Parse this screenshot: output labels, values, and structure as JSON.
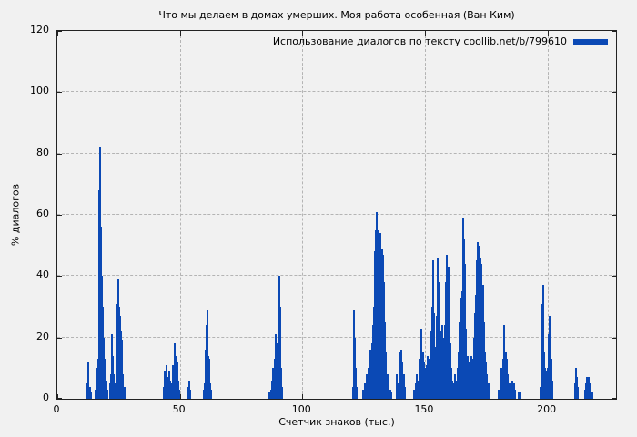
{
  "colors": {
    "bar_blue": "#0b49b5",
    "background": "#f1f1f1",
    "grid": "#b4b4b4",
    "frame": "#222222",
    "text": "#000000"
  },
  "chart_data": {
    "type": "bar",
    "title": "Что мы делаем в домах умерших. Моя работа особенная (Ван Ким)",
    "xlabel": "Счетчик знаков (тыс.)",
    "ylabel": "% диалогов",
    "xlim": [
      0,
      228
    ],
    "ylim": [
      0,
      120
    ],
    "x_ticks": [
      0,
      50,
      100,
      150,
      200
    ],
    "y_ticks": [
      0,
      20,
      40,
      60,
      80,
      100,
      120
    ],
    "grid": true,
    "legend_position": "top-right",
    "bar_style": "impulses",
    "series": [
      {
        "name": "Использование диалогов по тексту coollib.net/b/799610",
        "points": [
          [
            11.9,
            2
          ],
          [
            12.2,
            5
          ],
          [
            12.5,
            12
          ],
          [
            12.8,
            8
          ],
          [
            13.2,
            4
          ],
          [
            13.6,
            2
          ],
          [
            15.7,
            3
          ],
          [
            16.0,
            6
          ],
          [
            16.3,
            10
          ],
          [
            16.6,
            13
          ],
          [
            16.9,
            21
          ],
          [
            17.1,
            40
          ],
          [
            17.25,
            68
          ],
          [
            17.4,
            82
          ],
          [
            17.6,
            73
          ],
          [
            17.8,
            56
          ],
          [
            18.0,
            47
          ],
          [
            18.3,
            40
          ],
          [
            18.6,
            30
          ],
          [
            18.9,
            20
          ],
          [
            19.2,
            13
          ],
          [
            19.6,
            8
          ],
          [
            20.0,
            6
          ],
          [
            20.4,
            3
          ],
          [
            21.4,
            5
          ],
          [
            21.8,
            8
          ],
          [
            22.1,
            19
          ],
          [
            22.3,
            21
          ],
          [
            22.6,
            14
          ],
          [
            22.9,
            8
          ],
          [
            23.3,
            5
          ],
          [
            24.0,
            6
          ],
          [
            24.3,
            15
          ],
          [
            24.6,
            31
          ],
          [
            24.9,
            39
          ],
          [
            25.2,
            30
          ],
          [
            25.5,
            27
          ],
          [
            25.9,
            22
          ],
          [
            26.2,
            19
          ],
          [
            26.5,
            13
          ],
          [
            26.9,
            8
          ],
          [
            27.3,
            4
          ],
          [
            43.6,
            4
          ],
          [
            43.9,
            9
          ],
          [
            44.4,
            11
          ],
          [
            44.8,
            7
          ],
          [
            45.2,
            5
          ],
          [
            45.7,
            9
          ],
          [
            46.1,
            6
          ],
          [
            46.6,
            5
          ],
          [
            47.0,
            11
          ],
          [
            47.5,
            8
          ],
          [
            48.0,
            18
          ],
          [
            48.5,
            14
          ],
          [
            49.0,
            12
          ],
          [
            49.4,
            6
          ],
          [
            49.8,
            3
          ],
          [
            53.2,
            4
          ],
          [
            53.7,
            6
          ],
          [
            54.2,
            3
          ],
          [
            59.7,
            3
          ],
          [
            60.1,
            5
          ],
          [
            60.5,
            16
          ],
          [
            60.9,
            24
          ],
          [
            61.2,
            29
          ],
          [
            61.6,
            14
          ],
          [
            62.0,
            13
          ],
          [
            62.4,
            5
          ],
          [
            62.8,
            3
          ],
          [
            86.5,
            2
          ],
          [
            87.1,
            3
          ],
          [
            87.6,
            6
          ],
          [
            88.1,
            10
          ],
          [
            88.6,
            13
          ],
          [
            89.0,
            21
          ],
          [
            89.4,
            17
          ],
          [
            89.8,
            18
          ],
          [
            90.2,
            22
          ],
          [
            90.5,
            40
          ],
          [
            90.9,
            30
          ],
          [
            91.3,
            10
          ],
          [
            91.7,
            4
          ],
          [
            120.6,
            4
          ],
          [
            120.9,
            12
          ],
          [
            121.2,
            29
          ],
          [
            121.5,
            20
          ],
          [
            121.8,
            10
          ],
          [
            122.1,
            4
          ],
          [
            124.9,
            3
          ],
          [
            125.4,
            5
          ],
          [
            125.9,
            3
          ],
          [
            126.4,
            8
          ],
          [
            126.9,
            10
          ],
          [
            127.4,
            9
          ],
          [
            127.9,
            16
          ],
          [
            128.4,
            18
          ],
          [
            128.8,
            24
          ],
          [
            129.2,
            30
          ],
          [
            129.6,
            48
          ],
          [
            130.0,
            55
          ],
          [
            130.4,
            61
          ],
          [
            130.8,
            55
          ],
          [
            131.2,
            48
          ],
          [
            131.6,
            13
          ],
          [
            132.0,
            54
          ],
          [
            132.4,
            49
          ],
          [
            132.8,
            47
          ],
          [
            133.2,
            38
          ],
          [
            133.7,
            25
          ],
          [
            134.2,
            15
          ],
          [
            134.7,
            8
          ],
          [
            135.2,
            5
          ],
          [
            135.8,
            3
          ],
          [
            136.4,
            2
          ],
          [
            138.6,
            8
          ],
          [
            139.0,
            5
          ],
          [
            139.9,
            15
          ],
          [
            140.3,
            16
          ],
          [
            140.8,
            12
          ],
          [
            141.3,
            8
          ],
          [
            141.8,
            4
          ],
          [
            145.7,
            3
          ],
          [
            146.2,
            5
          ],
          [
            146.7,
            8
          ],
          [
            147.2,
            6
          ],
          [
            147.7,
            13
          ],
          [
            148.2,
            18
          ],
          [
            148.7,
            23
          ],
          [
            149.2,
            15
          ],
          [
            149.7,
            12
          ],
          [
            150.2,
            10
          ],
          [
            150.7,
            11
          ],
          [
            151.2,
            14
          ],
          [
            151.7,
            13
          ],
          [
            152.2,
            18
          ],
          [
            152.7,
            22
          ],
          [
            153.1,
            30
          ],
          [
            153.5,
            45
          ],
          [
            153.9,
            28
          ],
          [
            154.3,
            17
          ],
          [
            154.7,
            27
          ],
          [
            155.1,
            46
          ],
          [
            155.5,
            38
          ],
          [
            155.9,
            25
          ],
          [
            156.3,
            20
          ],
          [
            156.8,
            22
          ],
          [
            157.2,
            24
          ],
          [
            157.6,
            20
          ],
          [
            158.1,
            24
          ],
          [
            158.6,
            38
          ],
          [
            159.1,
            47
          ],
          [
            159.5,
            43
          ],
          [
            159.9,
            28
          ],
          [
            160.3,
            18
          ],
          [
            160.7,
            10
          ],
          [
            161.1,
            6
          ],
          [
            161.6,
            5
          ],
          [
            162.1,
            8
          ],
          [
            162.6,
            6
          ],
          [
            163.3,
            10
          ],
          [
            163.8,
            15
          ],
          [
            164.3,
            25
          ],
          [
            164.8,
            33
          ],
          [
            165.2,
            35
          ],
          [
            165.6,
            59
          ],
          [
            166.0,
            52
          ],
          [
            166.4,
            44
          ],
          [
            166.8,
            23
          ],
          [
            167.2,
            13
          ],
          [
            167.6,
            14
          ],
          [
            168.0,
            12
          ],
          [
            168.5,
            13
          ],
          [
            169.0,
            14
          ],
          [
            169.5,
            13
          ],
          [
            170.0,
            20
          ],
          [
            170.4,
            28
          ],
          [
            170.8,
            34
          ],
          [
            171.2,
            45
          ],
          [
            171.6,
            51
          ],
          [
            172.0,
            48
          ],
          [
            172.4,
            50
          ],
          [
            172.8,
            46
          ],
          [
            173.2,
            44
          ],
          [
            173.6,
            37
          ],
          [
            174.0,
            25
          ],
          [
            174.4,
            15
          ],
          [
            174.9,
            12
          ],
          [
            175.4,
            8
          ],
          [
            175.9,
            5
          ],
          [
            180.1,
            3
          ],
          [
            180.7,
            6
          ],
          [
            181.3,
            10
          ],
          [
            181.9,
            13
          ],
          [
            182.4,
            24
          ],
          [
            182.9,
            15
          ],
          [
            183.4,
            13
          ],
          [
            183.9,
            8
          ],
          [
            184.5,
            5
          ],
          [
            185.1,
            4
          ],
          [
            185.7,
            6
          ],
          [
            186.3,
            5
          ],
          [
            186.9,
            3
          ],
          [
            188.3,
            2
          ],
          [
            188.7,
            2
          ],
          [
            197.1,
            4
          ],
          [
            197.5,
            9
          ],
          [
            197.8,
            31
          ],
          [
            198.2,
            37
          ],
          [
            198.6,
            15
          ],
          [
            199.0,
            10
          ],
          [
            199.5,
            9
          ],
          [
            200.0,
            10
          ],
          [
            200.6,
            21
          ],
          [
            201.0,
            27
          ],
          [
            201.5,
            13
          ],
          [
            202.0,
            6
          ],
          [
            211.3,
            5
          ],
          [
            211.7,
            10
          ],
          [
            212.1,
            7
          ],
          [
            212.5,
            4
          ],
          [
            215.2,
            3
          ],
          [
            215.7,
            5
          ],
          [
            216.2,
            7
          ],
          [
            216.7,
            7
          ],
          [
            217.2,
            5
          ],
          [
            217.7,
            4
          ],
          [
            218.2,
            2
          ]
        ]
      }
    ]
  }
}
